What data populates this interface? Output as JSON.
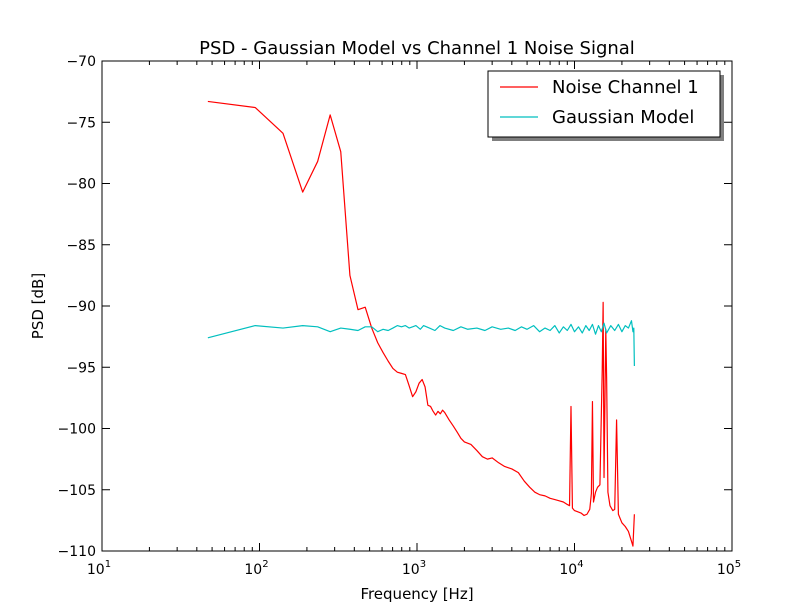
{
  "chart_data": {
    "type": "line",
    "title": "PSD - Gaussian Model vs Channel 1 Noise Signal",
    "xlabel": "Frequency [Hz]",
    "ylabel": "PSD [dB]",
    "xscale": "log",
    "xlim": [
      10,
      100000
    ],
    "ylim": [
      -110,
      -70
    ],
    "x_ticks": [
      {
        "value": 10,
        "base": "10",
        "exp": "1"
      },
      {
        "value": 100,
        "base": "10",
        "exp": "2"
      },
      {
        "value": 1000,
        "base": "10",
        "exp": "3"
      },
      {
        "value": 10000,
        "base": "10",
        "exp": "4"
      },
      {
        "value": 100000,
        "base": "10",
        "exp": "5"
      }
    ],
    "y_ticks": [
      {
        "value": -70,
        "label": "−70"
      },
      {
        "value": -75,
        "label": "−75"
      },
      {
        "value": -80,
        "label": "−80"
      },
      {
        "value": -85,
        "label": "−85"
      },
      {
        "value": -90,
        "label": "−90"
      },
      {
        "value": -95,
        "label": "−95"
      },
      {
        "value": -100,
        "label": "−100"
      },
      {
        "value": -105,
        "label": "−105"
      },
      {
        "value": -110,
        "label": "−110"
      }
    ],
    "grid": false,
    "legend_position": "top-right",
    "series": [
      {
        "name": "Noise Channel 1",
        "color": "#ff0000",
        "points": [
          [
            47,
            -73.3
          ],
          [
            94,
            -73.8
          ],
          [
            141,
            -75.9
          ],
          [
            188,
            -80.7
          ],
          [
            234,
            -78.2
          ],
          [
            281,
            -74.4
          ],
          [
            328,
            -77.4
          ],
          [
            375,
            -87.5
          ],
          [
            422,
            -90.3
          ],
          [
            469,
            -90.1
          ],
          [
            516,
            -91.8
          ],
          [
            563,
            -93.0
          ],
          [
            609,
            -93.8
          ],
          [
            656,
            -94.5
          ],
          [
            703,
            -95.1
          ],
          [
            750,
            -95.4
          ],
          [
            797,
            -95.5
          ],
          [
            844,
            -95.6
          ],
          [
            891,
            -96.5
          ],
          [
            938,
            -97.4
          ],
          [
            984,
            -97.0
          ],
          [
            1031,
            -96.3
          ],
          [
            1078,
            -96.0
          ],
          [
            1125,
            -96.6
          ],
          [
            1172,
            -98.1
          ],
          [
            1219,
            -98.2
          ],
          [
            1266,
            -98.6
          ],
          [
            1313,
            -98.9
          ],
          [
            1359,
            -98.6
          ],
          [
            1406,
            -98.8
          ],
          [
            1453,
            -98.5
          ],
          [
            1500,
            -98.7
          ],
          [
            1600,
            -99.3
          ],
          [
            1700,
            -99.8
          ],
          [
            1800,
            -100.3
          ],
          [
            1900,
            -100.8
          ],
          [
            2000,
            -101.1
          ],
          [
            2200,
            -101.3
          ],
          [
            2400,
            -101.8
          ],
          [
            2600,
            -102.3
          ],
          [
            2800,
            -102.5
          ],
          [
            3000,
            -102.4
          ],
          [
            3300,
            -102.8
          ],
          [
            3600,
            -103.1
          ],
          [
            4000,
            -103.3
          ],
          [
            4400,
            -103.6
          ],
          [
            4800,
            -104.3
          ],
          [
            5200,
            -104.8
          ],
          [
            5600,
            -105.2
          ],
          [
            6000,
            -105.4
          ],
          [
            6500,
            -105.5
          ],
          [
            7000,
            -105.7
          ],
          [
            7500,
            -105.8
          ],
          [
            8000,
            -105.9
          ],
          [
            8500,
            -106.0
          ],
          [
            9000,
            -106.2
          ],
          [
            9300,
            -106.3
          ],
          [
            9500,
            -98.2
          ],
          [
            9700,
            -106.5
          ],
          [
            10000,
            -106.7
          ],
          [
            10500,
            -106.8
          ],
          [
            11000,
            -106.9
          ],
          [
            11500,
            -107.1
          ],
          [
            12000,
            -107.0
          ],
          [
            12500,
            -106.6
          ],
          [
            12800,
            -105.3
          ],
          [
            13000,
            -97.8
          ],
          [
            13200,
            -106.0
          ],
          [
            13600,
            -105.2
          ],
          [
            14000,
            -104.8
          ],
          [
            14500,
            -104.6
          ],
          [
            15000,
            -95.2
          ],
          [
            15200,
            -89.7
          ],
          [
            15400,
            -104.0
          ],
          [
            15800,
            -91.9
          ],
          [
            16000,
            -96.0
          ],
          [
            16300,
            -105.2
          ],
          [
            16800,
            -106.3
          ],
          [
            17500,
            -106.7
          ],
          [
            18000,
            -106.6
          ],
          [
            18500,
            -99.3
          ],
          [
            19000,
            -107.0
          ],
          [
            20000,
            -107.7
          ],
          [
            21000,
            -108.0
          ],
          [
            22000,
            -108.4
          ],
          [
            23000,
            -109.2
          ],
          [
            23500,
            -109.6
          ],
          [
            24000,
            -107.0
          ]
        ]
      },
      {
        "name": "Gaussian Model",
        "color": "#00bfbf",
        "points": [
          [
            47,
            -92.6
          ],
          [
            94,
            -91.6
          ],
          [
            141,
            -91.8
          ],
          [
            188,
            -91.6
          ],
          [
            234,
            -91.7
          ],
          [
            281,
            -92.1
          ],
          [
            328,
            -91.8
          ],
          [
            375,
            -91.9
          ],
          [
            422,
            -92.0
          ],
          [
            469,
            -91.7
          ],
          [
            516,
            -91.7
          ],
          [
            563,
            -92.1
          ],
          [
            609,
            -91.9
          ],
          [
            656,
            -92.0
          ],
          [
            703,
            -91.8
          ],
          [
            750,
            -91.6
          ],
          [
            797,
            -91.7
          ],
          [
            844,
            -91.6
          ],
          [
            891,
            -91.8
          ],
          [
            938,
            -91.7
          ],
          [
            984,
            -91.6
          ],
          [
            1050,
            -91.9
          ],
          [
            1100,
            -91.6
          ],
          [
            1200,
            -91.8
          ],
          [
            1300,
            -92.0
          ],
          [
            1400,
            -91.6
          ],
          [
            1500,
            -91.8
          ],
          [
            1700,
            -92.0
          ],
          [
            1900,
            -91.7
          ],
          [
            2100,
            -91.9
          ],
          [
            2400,
            -91.8
          ],
          [
            2700,
            -92.0
          ],
          [
            3000,
            -91.7
          ],
          [
            3400,
            -91.9
          ],
          [
            3800,
            -91.8
          ],
          [
            4200,
            -92.0
          ],
          [
            4600,
            -91.7
          ],
          [
            5000,
            -91.9
          ],
          [
            5500,
            -91.6
          ],
          [
            6000,
            -92.1
          ],
          [
            6500,
            -91.8
          ],
          [
            7000,
            -92.0
          ],
          [
            7500,
            -91.6
          ],
          [
            8000,
            -92.2
          ],
          [
            8500,
            -91.7
          ],
          [
            9000,
            -92.0
          ],
          [
            9500,
            -91.5
          ],
          [
            10000,
            -92.1
          ],
          [
            10600,
            -91.7
          ],
          [
            11200,
            -92.2
          ],
          [
            11800,
            -91.6
          ],
          [
            12400,
            -92.0
          ],
          [
            13000,
            -91.5
          ],
          [
            13600,
            -92.3
          ],
          [
            14200,
            -91.6
          ],
          [
            14800,
            -92.1
          ],
          [
            15400,
            -91.4
          ],
          [
            16000,
            -92.2
          ],
          [
            17000,
            -91.6
          ],
          [
            18000,
            -92.0
          ],
          [
            19000,
            -91.5
          ],
          [
            20000,
            -92.1
          ],
          [
            21000,
            -91.6
          ],
          [
            22000,
            -91.8
          ],
          [
            23000,
            -91.2
          ],
          [
            23500,
            -92.1
          ],
          [
            23800,
            -91.8
          ],
          [
            24000,
            -94.9
          ]
        ]
      }
    ]
  }
}
